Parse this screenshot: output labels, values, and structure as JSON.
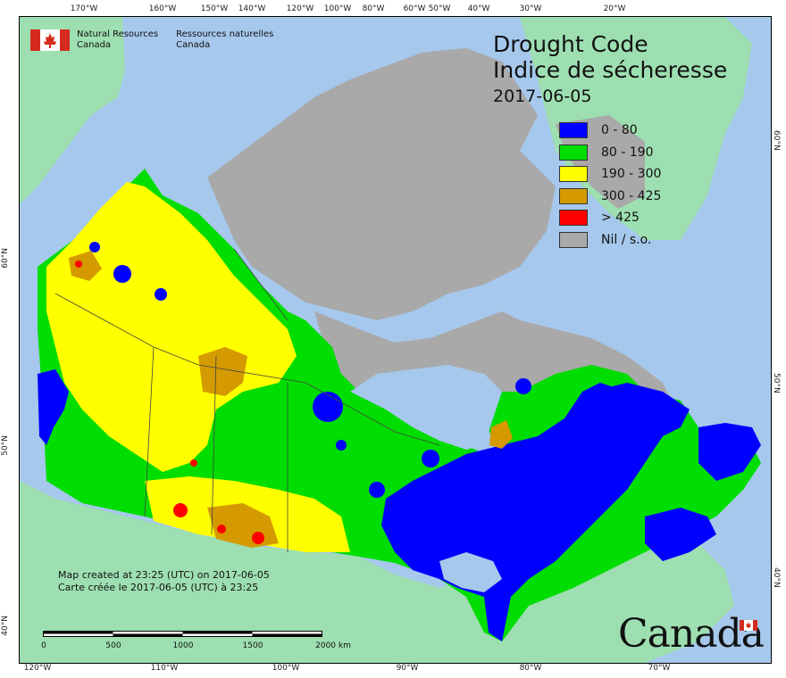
{
  "title": {
    "line1": "Drought Code",
    "line2": "Indice de sécheresse",
    "date": "2017-06-05"
  },
  "agency": {
    "name_en_1": "Natural Resources",
    "name_en_2": "Canada",
    "name_fr_1": "Ressources naturelles",
    "name_fr_2": "Canada"
  },
  "legend": [
    {
      "label": "0 - 80",
      "color": "#0000ff"
    },
    {
      "label": "80 - 190",
      "color": "#00dd00"
    },
    {
      "label": "190 - 300",
      "color": "#ffff00"
    },
    {
      "label": "300 - 425",
      "color": "#d49a00"
    },
    {
      "label": "> 425",
      "color": "#ff0000"
    },
    {
      "label": "Nil / s.o.",
      "color": "#a9a9a9"
    }
  ],
  "credit": {
    "en": "Map created at 23:25 (UTC) on 2017-06-05",
    "fr": "Carte créée le 2017-06-05 (UTC) à 23:25"
  },
  "scale": {
    "labels": [
      "0",
      "500",
      "1000",
      "1500",
      "2000 km"
    ]
  },
  "wordmark": "Canada",
  "graticule": {
    "top": [
      "170°W",
      "160°W",
      "150°W",
      "140°W",
      "120°W",
      "100°W",
      "80°W",
      "60°W",
      "50°W",
      "40°W",
      "30°W",
      "20°W"
    ],
    "bottom": [
      "120°W",
      "110°W",
      "100°W",
      "90°W",
      "80°W",
      "70°W"
    ],
    "left": [
      "60°N",
      "50°N",
      "40°N"
    ],
    "right": [
      "60°N",
      "50°N",
      "40°N"
    ]
  },
  "colors": {
    "water": "#a6c8ec",
    "land_outside": "#9ddfb1",
    "nil": "#a9a9a9"
  }
}
